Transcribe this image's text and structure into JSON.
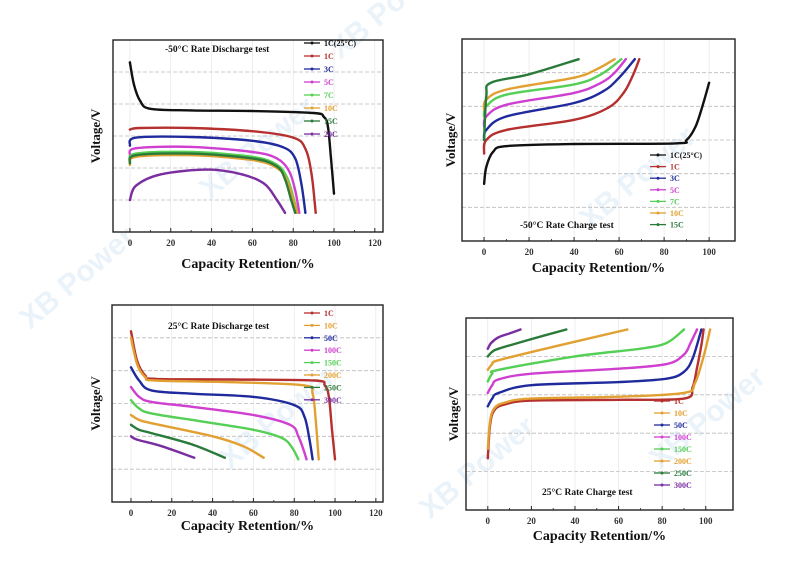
{
  "watermark": "XB Power",
  "colors": {
    "1C(25°C)": "#111111",
    "1C": "#b5302e",
    "3C": "#1f2a9c",
    "5C": "#cf3fd0",
    "7C": "#55cf55",
    "10C": "#e2a032",
    "15C": "#2a7a3a",
    "20C": "#7a2ea0",
    "50C": "#1f2a9c",
    "100C": "#cf3fd0",
    "150C": "#55cf55",
    "200C": "#e2a032",
    "250C": "#2a7a3a",
    "300C": "#7a2ea0"
  },
  "chart_data": [
    {
      "type": "line",
      "title": "-50°C Rate Discharge test",
      "xlabel": "Capacity Retention/%",
      "ylabel": "Voltage/V",
      "xlim": [
        -8.3,
        124
      ],
      "ylim": [
        0,
        6
      ],
      "xticks": [
        0,
        20,
        40,
        60,
        80,
        100,
        120
      ],
      "grid": true,
      "legend": "top-right",
      "series": [
        {
          "name": "1C(25°C)",
          "points": [
            [
              0,
              5.3
            ],
            [
              2,
              4.6
            ],
            [
              5,
              4.1
            ],
            [
              10,
              3.85
            ],
            [
              30,
              3.8
            ],
            [
              60,
              3.78
            ],
            [
              90,
              3.72
            ],
            [
              95,
              3.6
            ],
            [
              97,
              3.3
            ],
            [
              98.5,
              2.3
            ],
            [
              100,
              1.2
            ]
          ]
        },
        {
          "name": "1C",
          "points": [
            [
              0,
              3.2
            ],
            [
              5,
              3.25
            ],
            [
              30,
              3.25
            ],
            [
              60,
              3.15
            ],
            [
              80,
              2.95
            ],
            [
              86,
              2.6
            ],
            [
              89,
              1.8
            ],
            [
              91,
              0.6
            ]
          ]
        },
        {
          "name": "3C",
          "points": [
            [
              0,
              2.7
            ],
            [
              3,
              2.95
            ],
            [
              30,
              2.97
            ],
            [
              60,
              2.85
            ],
            [
              75,
              2.65
            ],
            [
              81,
              2.3
            ],
            [
              84,
              1.5
            ],
            [
              86,
              0.6
            ]
          ]
        },
        {
          "name": "5C",
          "points": [
            [
              0,
              2.4
            ],
            [
              3,
              2.62
            ],
            [
              30,
              2.66
            ],
            [
              60,
              2.5
            ],
            [
              72,
              2.3
            ],
            [
              78,
              1.9
            ],
            [
              81,
              1.3
            ],
            [
              83,
              0.6
            ]
          ]
        },
        {
          "name": "7C",
          "points": [
            [
              0,
              2.2
            ],
            [
              3,
              2.45
            ],
            [
              30,
              2.5
            ],
            [
              60,
              2.35
            ],
            [
              72,
              2.1
            ],
            [
              77,
              1.7
            ],
            [
              80,
              1.1
            ],
            [
              82,
              0.6
            ]
          ]
        },
        {
          "name": "10C",
          "points": [
            [
              0,
              2.1
            ],
            [
              3,
              2.35
            ],
            [
              30,
              2.4
            ],
            [
              60,
              2.25
            ],
            [
              72,
              2.0
            ],
            [
              77,
              1.6
            ],
            [
              80,
              1.0
            ],
            [
              82,
              0.6
            ]
          ]
        },
        {
          "name": "15C",
          "points": [
            [
              0,
              2.15
            ],
            [
              3,
              2.4
            ],
            [
              30,
              2.45
            ],
            [
              60,
              2.3
            ],
            [
              72,
              2.05
            ],
            [
              76,
              1.65
            ],
            [
              79,
              1.0
            ],
            [
              81,
              0.6
            ]
          ]
        },
        {
          "name": "20C",
          "points": [
            [
              0,
              1.0
            ],
            [
              3,
              1.45
            ],
            [
              15,
              1.8
            ],
            [
              38,
              1.95
            ],
            [
              55,
              1.8
            ],
            [
              66,
              1.5
            ],
            [
              72,
              1.0
            ],
            [
              76,
              0.6
            ]
          ]
        }
      ]
    },
    {
      "type": "line",
      "title": "-50°C Rate Charge test",
      "xlabel": "Capacity Retention/%",
      "ylabel": "Voltage/V",
      "xlim": [
        -9.8,
        111.5
      ],
      "ylim": [
        0,
        6
      ],
      "xticks": [
        0,
        20,
        40,
        60,
        80,
        100
      ],
      "grid": true,
      "legend": "bottom-right",
      "series": [
        {
          "name": "1C(25°C)",
          "points": [
            [
              0,
              1.7
            ],
            [
              1,
              2.2
            ],
            [
              4,
              2.65
            ],
            [
              10,
              2.82
            ],
            [
              40,
              2.88
            ],
            [
              85,
              2.9
            ],
            [
              90,
              3.0
            ],
            [
              94,
              3.4
            ],
            [
              97,
              4.0
            ],
            [
              100,
              4.7
            ]
          ]
        },
        {
          "name": "1C",
          "points": [
            [
              0,
              2.6
            ],
            [
              1,
              3.0
            ],
            [
              10,
              3.3
            ],
            [
              40,
              3.6
            ],
            [
              55,
              3.95
            ],
            [
              62,
              4.4
            ],
            [
              66,
              4.9
            ],
            [
              69,
              5.4
            ]
          ]
        },
        {
          "name": "3C",
          "points": [
            [
              0,
              3.0
            ],
            [
              1,
              3.3
            ],
            [
              10,
              3.7
            ],
            [
              40,
              4.1
            ],
            [
              53,
              4.45
            ],
            [
              60,
              4.85
            ],
            [
              67,
              5.4
            ]
          ]
        },
        {
          "name": "5C",
          "points": [
            [
              0,
              3.4
            ],
            [
              1,
              3.7
            ],
            [
              10,
              4.05
            ],
            [
              40,
              4.4
            ],
            [
              52,
              4.7
            ],
            [
              58,
              5.0
            ],
            [
              63,
              5.4
            ]
          ]
        },
        {
          "name": "7C",
          "points": [
            [
              0,
              3.7
            ],
            [
              1,
              4.0
            ],
            [
              10,
              4.35
            ],
            [
              40,
              4.65
            ],
            [
              52,
              4.95
            ],
            [
              61,
              5.4
            ]
          ]
        },
        {
          "name": "10C",
          "points": [
            [
              0,
              3.9
            ],
            [
              1,
              4.2
            ],
            [
              10,
              4.5
            ],
            [
              40,
              4.85
            ],
            [
              50,
              5.1
            ],
            [
              58,
              5.4
            ]
          ]
        },
        {
          "name": "15C",
          "points": [
            [
              0,
              3.0
            ],
            [
              1,
              4.3
            ],
            [
              3,
              4.7
            ],
            [
              20,
              4.95
            ],
            [
              42,
              5.4
            ]
          ]
        }
      ]
    },
    {
      "type": "line",
      "title": "25°C Rate Discharge test",
      "xlabel": "Capacity Retention/%",
      "ylabel": "Voltage/V",
      "xlim": [
        -9.3,
        123.5
      ],
      "ylim": [
        0,
        6
      ],
      "xticks": [
        0,
        20,
        40,
        60,
        80,
        100,
        120
      ],
      "grid": true,
      "legend": "top-right",
      "series": [
        {
          "name": "1C",
          "points": [
            [
              0,
              5.2
            ],
            [
              3,
              4.3
            ],
            [
              7,
              3.85
            ],
            [
              12,
              3.75
            ],
            [
              50,
              3.73
            ],
            [
              90,
              3.7
            ],
            [
              95,
              3.55
            ],
            [
              97,
              3.2
            ],
            [
              98.5,
              2.2
            ],
            [
              100,
              1.3
            ]
          ]
        },
        {
          "name": "10C",
          "points": [
            [
              0,
              5.0
            ],
            [
              3,
              4.2
            ],
            [
              7,
              3.8
            ],
            [
              12,
              3.7
            ],
            [
              50,
              3.65
            ],
            [
              85,
              3.55
            ],
            [
              89,
              3.3
            ],
            [
              90.5,
              2.5
            ],
            [
              92,
              1.3
            ]
          ]
        },
        {
          "name": "50C",
          "points": [
            [
              0,
              4.1
            ],
            [
              4,
              3.7
            ],
            [
              10,
              3.4
            ],
            [
              30,
              3.3
            ],
            [
              60,
              3.2
            ],
            [
              80,
              2.95
            ],
            [
              85,
              2.6
            ],
            [
              87.5,
              1.9
            ],
            [
              89,
              1.3
            ]
          ]
        },
        {
          "name": "100C",
          "points": [
            [
              0,
              3.5
            ],
            [
              4,
              3.2
            ],
            [
              10,
              3.05
            ],
            [
              30,
              2.9
            ],
            [
              60,
              2.65
            ],
            [
              78,
              2.35
            ],
            [
              82,
              2.0
            ],
            [
              84.5,
              1.6
            ],
            [
              86,
              1.3
            ]
          ]
        },
        {
          "name": "150C",
          "points": [
            [
              0,
              3.1
            ],
            [
              4,
              2.85
            ],
            [
              10,
              2.7
            ],
            [
              35,
              2.45
            ],
            [
              60,
              2.2
            ],
            [
              74,
              1.95
            ],
            [
              79,
              1.65
            ],
            [
              82,
              1.3
            ]
          ]
        },
        {
          "name": "200C",
          "points": [
            [
              0,
              2.65
            ],
            [
              4,
              2.5
            ],
            [
              10,
              2.4
            ],
            [
              40,
              2.0
            ],
            [
              55,
              1.7
            ],
            [
              65,
              1.35
            ]
          ]
        },
        {
          "name": "250C",
          "points": [
            [
              0,
              2.35
            ],
            [
              4,
              2.2
            ],
            [
              10,
              2.1
            ],
            [
              30,
              1.75
            ],
            [
              46,
              1.35
            ]
          ]
        },
        {
          "name": "300C",
          "points": [
            [
              0,
              2.0
            ],
            [
              3,
              1.9
            ],
            [
              15,
              1.7
            ],
            [
              31,
              1.35
            ]
          ]
        }
      ]
    },
    {
      "type": "line",
      "title": "25°C Rate Charge test",
      "xlabel": "Capacity Retention/%",
      "ylabel": "Voltage/V",
      "xlim": [
        -10,
        112.5
      ],
      "ylim": [
        0,
        5
      ],
      "xticks": [
        0,
        20,
        40,
        60,
        80,
        100
      ],
      "grid": true,
      "legend": "bottom-right",
      "series": [
        {
          "name": "1C",
          "points": [
            [
              0,
              1.35
            ],
            [
              1,
              2.2
            ],
            [
              3,
              2.6
            ],
            [
              8,
              2.75
            ],
            [
              20,
              2.85
            ],
            [
              60,
              2.87
            ],
            [
              90,
              2.9
            ],
            [
              94,
              3.2
            ],
            [
              96,
              3.7
            ],
            [
              98,
              4.3
            ],
            [
              99,
              4.7
            ]
          ]
        },
        {
          "name": "10C",
          "points": [
            [
              0,
              1.6
            ],
            [
              1,
              2.3
            ],
            [
              3,
              2.65
            ],
            [
              8,
              2.8
            ],
            [
              20,
              2.9
            ],
            [
              60,
              2.95
            ],
            [
              90,
              3.05
            ],
            [
              95,
              3.3
            ],
            [
              99,
              4.0
            ],
            [
              102,
              4.7
            ]
          ]
        },
        {
          "name": "50C",
          "points": [
            [
              0,
              2.7
            ],
            [
              2,
              2.9
            ],
            [
              5,
              3.05
            ],
            [
              20,
              3.25
            ],
            [
              60,
              3.33
            ],
            [
              82,
              3.42
            ],
            [
              90,
              3.6
            ],
            [
              94,
              3.95
            ],
            [
              98,
              4.7
            ]
          ]
        },
        {
          "name": "100C",
          "points": [
            [
              0,
              3.05
            ],
            [
              2,
              3.25
            ],
            [
              5,
              3.4
            ],
            [
              20,
              3.55
            ],
            [
              60,
              3.68
            ],
            [
              82,
              3.8
            ],
            [
              90,
              4.05
            ],
            [
              93,
              4.35
            ],
            [
              96,
              4.7
            ]
          ]
        },
        {
          "name": "150C",
          "points": [
            [
              0,
              3.35
            ],
            [
              2,
              3.55
            ],
            [
              5,
              3.65
            ],
            [
              40,
              4.0
            ],
            [
              70,
              4.2
            ],
            [
              82,
              4.35
            ],
            [
              90,
              4.7
            ]
          ]
        },
        {
          "name": "200C",
          "points": [
            [
              0,
              3.65
            ],
            [
              2,
              3.8
            ],
            [
              5,
              3.9
            ],
            [
              30,
              4.25
            ],
            [
              64,
              4.7
            ]
          ]
        },
        {
          "name": "250C",
          "points": [
            [
              0,
              4.0
            ],
            [
              2,
              4.12
            ],
            [
              5,
              4.2
            ],
            [
              20,
              4.45
            ],
            [
              36,
              4.7
            ]
          ]
        },
        {
          "name": "300C",
          "points": [
            [
              0,
              4.2
            ],
            [
              1.5,
              4.35
            ],
            [
              5,
              4.5
            ],
            [
              10,
              4.6
            ],
            [
              15,
              4.7
            ]
          ]
        }
      ]
    }
  ]
}
